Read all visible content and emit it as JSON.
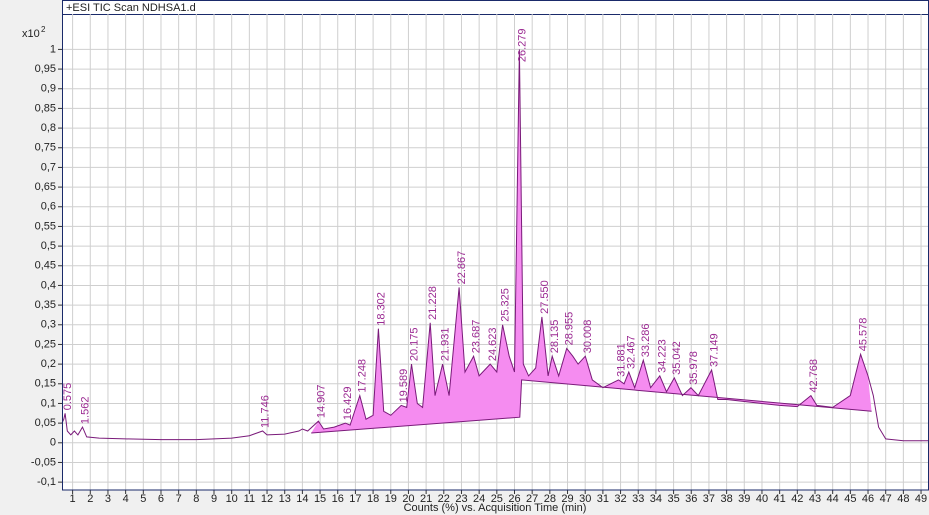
{
  "chart_data": {
    "type": "line",
    "title": "+ESI TIC Scan NDHSA1.d",
    "x_label": "Counts (%) vs. Acquisition Time (min)",
    "y_multiplier": "x10",
    "y_multiplier_exp": "2",
    "xlim": [
      0.4,
      49.45
    ],
    "ylim": [
      -0.12,
      1.09
    ],
    "xticks": [
      1,
      2,
      3,
      4,
      5,
      6,
      7,
      8,
      9,
      10,
      11,
      12,
      13,
      14,
      15,
      16,
      17,
      18,
      19,
      20,
      21,
      22,
      23,
      24,
      25,
      26,
      27,
      28,
      29,
      30,
      31,
      32,
      33,
      34,
      35,
      36,
      37,
      38,
      39,
      40,
      41,
      42,
      43,
      44,
      45,
      46,
      47,
      48,
      49
    ],
    "yticks": [
      {
        "value": -0.1,
        "label": "-0,1"
      },
      {
        "value": -0.05,
        "label": "-0,05"
      },
      0,
      {
        "value": 0.05,
        "label": "0,05"
      },
      {
        "value": 0.1,
        "label": "0,1"
      },
      {
        "value": 0.15,
        "label": "0,15"
      },
      {
        "value": 0.2,
        "label": "0,2"
      },
      {
        "value": 0.25,
        "label": "0,25"
      },
      {
        "value": 0.3,
        "label": "0,3"
      },
      {
        "value": 0.35,
        "label": "0,35"
      },
      {
        "value": 0.4,
        "label": "0,4"
      },
      {
        "value": 0.45,
        "label": "0,45"
      },
      {
        "value": 0.5,
        "label": "0,5"
      },
      {
        "value": 0.55,
        "label": "0,55"
      },
      {
        "value": 0.6,
        "label": "0,6"
      },
      {
        "value": 0.65,
        "label": "0,65"
      },
      {
        "value": 0.7,
        "label": "0,7"
      },
      {
        "value": 0.75,
        "label": "0,75"
      },
      {
        "value": 0.8,
        "label": "0,8"
      },
      {
        "value": 0.85,
        "label": "0,85"
      },
      {
        "value": 0.9,
        "label": "0,9"
      },
      {
        "value": 0.95,
        "label": "0,95"
      },
      1
    ],
    "grid": true,
    "trace": {
      "color": "#7a1a7a",
      "x": [
        0.4,
        0.5,
        0.575,
        0.7,
        0.9,
        1.1,
        1.3,
        1.562,
        1.8,
        2.5,
        4,
        6,
        8,
        10,
        11,
        11.746,
        12,
        13,
        13.8,
        14,
        14.3,
        14.907,
        15.2,
        15.8,
        16.429,
        16.7,
        17.248,
        17.6,
        18,
        18.302,
        18.6,
        19,
        19.589,
        19.9,
        20.175,
        20.5,
        20.8,
        21.228,
        21.5,
        21.931,
        22.3,
        22.867,
        23.2,
        23.687,
        24,
        24.623,
        25,
        25.325,
        25.7,
        26,
        26.279,
        26.5,
        26.8,
        27.2,
        27.55,
        27.9,
        28.135,
        28.5,
        28.955,
        29.3,
        29.6,
        30.008,
        30.4,
        31,
        31.881,
        32.2,
        32.467,
        32.8,
        33.286,
        33.7,
        34.223,
        34.6,
        35.042,
        35.5,
        35.978,
        36.4,
        37.149,
        37.5,
        38,
        39,
        40,
        41,
        42,
        42.768,
        43.1,
        44,
        45,
        45.578,
        46,
        46.3,
        46.6,
        47,
        48,
        49.4
      ],
      "values": [
        0.05,
        0.06,
        0.075,
        0.03,
        0.02,
        0.03,
        0.02,
        0.04,
        0.015,
        0.012,
        0.01,
        0.008,
        0.008,
        0.012,
        0.018,
        0.03,
        0.02,
        0.022,
        0.03,
        0.035,
        0.03,
        0.055,
        0.035,
        0.04,
        0.05,
        0.045,
        0.12,
        0.06,
        0.07,
        0.29,
        0.08,
        0.07,
        0.095,
        0.09,
        0.2,
        0.1,
        0.09,
        0.305,
        0.12,
        0.2,
        0.12,
        0.395,
        0.18,
        0.22,
        0.17,
        0.2,
        0.18,
        0.3,
        0.22,
        0.18,
        1.0,
        0.2,
        0.17,
        0.19,
        0.32,
        0.17,
        0.22,
        0.17,
        0.24,
        0.22,
        0.2,
        0.22,
        0.16,
        0.14,
        0.16,
        0.15,
        0.18,
        0.14,
        0.21,
        0.14,
        0.17,
        0.13,
        0.165,
        0.12,
        0.14,
        0.12,
        0.185,
        0.11,
        0.11,
        0.105,
        0.1,
        0.095,
        0.092,
        0.12,
        0.095,
        0.09,
        0.12,
        0.225,
        0.17,
        0.12,
        0.04,
        0.01,
        0.005,
        0.005
      ]
    },
    "baseline": {
      "color": "#7a1a7a",
      "fill": "#f58cf0",
      "x": [
        14.5,
        26.3,
        26.4,
        46.2
      ],
      "values": [
        0.025,
        0.065,
        0.16,
        0.08
      ]
    },
    "peak_color": "#9b2a92",
    "peaks": [
      {
        "label": "0.575",
        "x": 0.575,
        "y": 0.075
      },
      {
        "label": "1.562",
        "x": 1.562,
        "y": 0.04
      },
      {
        "label": "11.746",
        "x": 11.746,
        "y": 0.03
      },
      {
        "label": "14.907",
        "x": 14.907,
        "y": 0.055
      },
      {
        "label": "16.429",
        "x": 16.429,
        "y": 0.05
      },
      {
        "label": "17.248",
        "x": 17.248,
        "y": 0.12
      },
      {
        "label": "18.302",
        "x": 18.302,
        "y": 0.29
      },
      {
        "label": "19.589",
        "x": 19.589,
        "y": 0.095
      },
      {
        "label": "20.175",
        "x": 20.175,
        "y": 0.2
      },
      {
        "label": "21.228",
        "x": 21.228,
        "y": 0.305
      },
      {
        "label": "21.931",
        "x": 21.931,
        "y": 0.2
      },
      {
        "label": "22.867",
        "x": 22.867,
        "y": 0.395
      },
      {
        "label": "23.687",
        "x": 23.687,
        "y": 0.22
      },
      {
        "label": "24.623",
        "x": 24.623,
        "y": 0.2
      },
      {
        "label": "25.325",
        "x": 25.325,
        "y": 0.3
      },
      {
        "label": "26.279",
        "x": 26.279,
        "y": 0.96
      },
      {
        "label": "27.550",
        "x": 27.55,
        "y": 0.32
      },
      {
        "label": "28.135",
        "x": 28.135,
        "y": 0.22
      },
      {
        "label": "28.955",
        "x": 28.955,
        "y": 0.24
      },
      {
        "label": "30.008",
        "x": 30.008,
        "y": 0.22
      },
      {
        "label": "31.881",
        "x": 31.881,
        "y": 0.16
      },
      {
        "label": "32.467",
        "x": 32.467,
        "y": 0.18
      },
      {
        "label": "33.286",
        "x": 33.286,
        "y": 0.21
      },
      {
        "label": "34.223",
        "x": 34.223,
        "y": 0.17
      },
      {
        "label": "35.042",
        "x": 35.042,
        "y": 0.165
      },
      {
        "label": "35.978",
        "x": 35.978,
        "y": 0.14
      },
      {
        "label": "37.149",
        "x": 37.149,
        "y": 0.185
      },
      {
        "label": "42.768",
        "x": 42.768,
        "y": 0.12
      },
      {
        "label": "45.578",
        "x": 45.578,
        "y": 0.225
      }
    ]
  }
}
